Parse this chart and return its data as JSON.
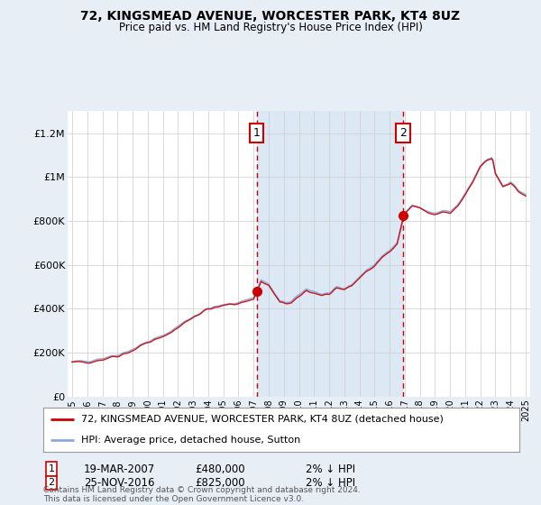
{
  "title": "72, KINGSMEAD AVENUE, WORCESTER PARK, KT4 8UZ",
  "subtitle": "Price paid vs. HM Land Registry's House Price Index (HPI)",
  "legend_line1": "72, KINGSMEAD AVENUE, WORCESTER PARK, KT4 8UZ (detached house)",
  "legend_line2": "HPI: Average price, detached house, Sutton",
  "footer": "Contains HM Land Registry data © Crown copyright and database right 2024.\nThis data is licensed under the Open Government Licence v3.0.",
  "sale1_label": "1",
  "sale1_date": "19-MAR-2007",
  "sale1_price": "£480,000",
  "sale1_hpi": "2% ↓ HPI",
  "sale1_year": 2007.21,
  "sale1_value": 480000,
  "sale2_label": "2",
  "sale2_date": "25-NOV-2016",
  "sale2_price": "£825,000",
  "sale2_hpi": "2% ↓ HPI",
  "sale2_year": 2016.9,
  "sale2_value": 825000,
  "ylim": [
    0,
    1300000
  ],
  "xlim": [
    1994.7,
    2025.3
  ],
  "yticks": [
    0,
    200000,
    400000,
    600000,
    800000,
    1000000,
    1200000
  ],
  "ytick_labels": [
    "£0",
    "£200K",
    "£400K",
    "£600K",
    "£800K",
    "£1M",
    "£1.2M"
  ],
  "background_color": "#e8eef5",
  "plot_bg_color": "#ffffff",
  "line_color_red": "#cc0000",
  "line_color_blue": "#88aadd",
  "shade_color": "#dde8f5",
  "grid_color": "#cccccc",
  "xtick_years": [
    1995,
    1996,
    1997,
    1998,
    1999,
    2000,
    2001,
    2002,
    2003,
    2004,
    2005,
    2006,
    2007,
    2008,
    2009,
    2010,
    2011,
    2012,
    2013,
    2014,
    2015,
    2016,
    2017,
    2018,
    2019,
    2020,
    2021,
    2022,
    2023,
    2024,
    2025
  ]
}
